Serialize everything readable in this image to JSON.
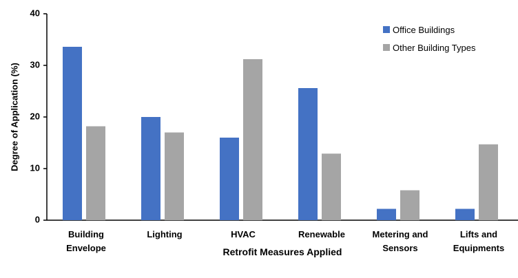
{
  "chart_data": {
    "type": "bar",
    "y_label": "Degree of Application (%)",
    "x_label": "Retrofit Measures Applied",
    "categories": [
      "Building Envelope",
      "Lighting",
      "HVAC",
      "Renewable",
      "Metering and Sensors",
      "Lifts and Equipments"
    ],
    "series": [
      {
        "name": "Office Buildings",
        "color": "#4472c4",
        "values": [
          33.6,
          20.0,
          16.0,
          25.6,
          2.2,
          2.2
        ]
      },
      {
        "name": "Other Building Types",
        "color": "#a5a5a5",
        "values": [
          18.2,
          17.0,
          31.2,
          12.9,
          5.8,
          14.7
        ]
      }
    ],
    "ylim": [
      0,
      40
    ],
    "yticks": [
      0,
      10,
      20,
      30,
      40
    ],
    "grid": false,
    "legend": "upper right"
  }
}
